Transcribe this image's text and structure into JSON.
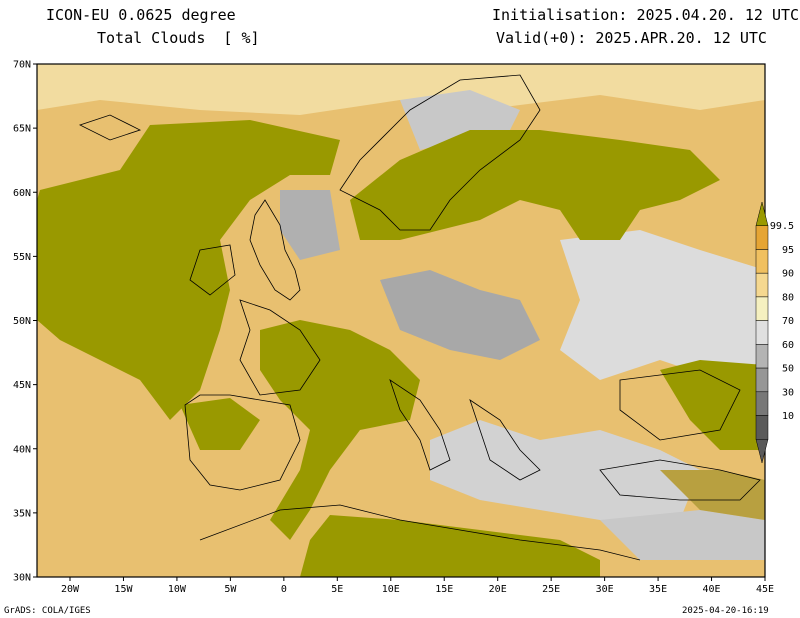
{
  "header": {
    "title_line1": "ICON-EU 0.0625 degree",
    "title_line2": "Total Clouds  [ %]",
    "init_text": "Initialisation: 2025.04.20. 12 UTC",
    "valid_text": "Valid(+0): 2025.APR.20. 12 UTC"
  },
  "axes": {
    "lat_labels": [
      "70N",
      "65N",
      "60N",
      "55N",
      "50N",
      "45N",
      "40N",
      "35N",
      "30N"
    ],
    "lon_labels": [
      "20W",
      "15W",
      "10W",
      "5W",
      "0",
      "5E",
      "10E",
      "15E",
      "20E",
      "25E",
      "30E",
      "35E",
      "40E",
      "45E"
    ]
  },
  "colorbar": {
    "labels": [
      "99.5",
      "95",
      "90",
      "80",
      "70",
      "60",
      "50",
      "30",
      "10"
    ],
    "colors": [
      "#999900",
      "#e6a534",
      "#f0c060",
      "#f5d890",
      "#f5f0c0",
      "#e0e0e0",
      "#b4b4b4",
      "#969696",
      "#787878",
      "#5a5a5a"
    ]
  },
  "footer": {
    "left": "GrADS: COLA/IGES",
    "right": "2025-04-20-16:19"
  },
  "colors": {
    "olive": "#999900",
    "orange": "#e6a534",
    "light_orange": "#f0c878",
    "pale": "#f5e6b4",
    "clear": "#dcdcdc",
    "gray": "#a0a0a0",
    "dark_gray": "#6e6e6e"
  }
}
